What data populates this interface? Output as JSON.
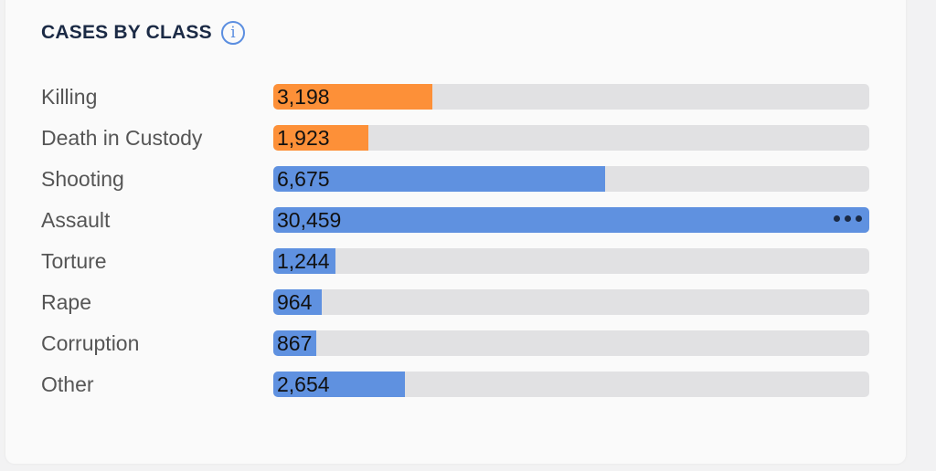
{
  "title": "CASES BY CLASS",
  "info_icon": "i",
  "colors": {
    "orange": "#fd9038",
    "blue": "#5f91e0",
    "track": "#e1e1e3"
  },
  "chart_data": {
    "type": "bar",
    "orientation": "horizontal",
    "title": "CASES BY CLASS",
    "categories": [
      "Killing",
      "Death in Custody",
      "Shooting",
      "Assault",
      "Torture",
      "Rape",
      "Corruption",
      "Other"
    ],
    "values": [
      3198,
      1923,
      6675,
      30459,
      1244,
      964,
      867,
      2654
    ],
    "labels": [
      "3,198",
      "1,923",
      "6,675",
      "30,459",
      "1,244",
      "964",
      "867",
      "2,654"
    ],
    "fill_fraction": [
      0.267,
      0.16,
      0.557,
      1.0,
      0.104,
      0.081,
      0.072,
      0.221
    ],
    "bar_colors": [
      "orange",
      "orange",
      "blue",
      "blue",
      "blue",
      "blue",
      "blue",
      "blue"
    ]
  }
}
